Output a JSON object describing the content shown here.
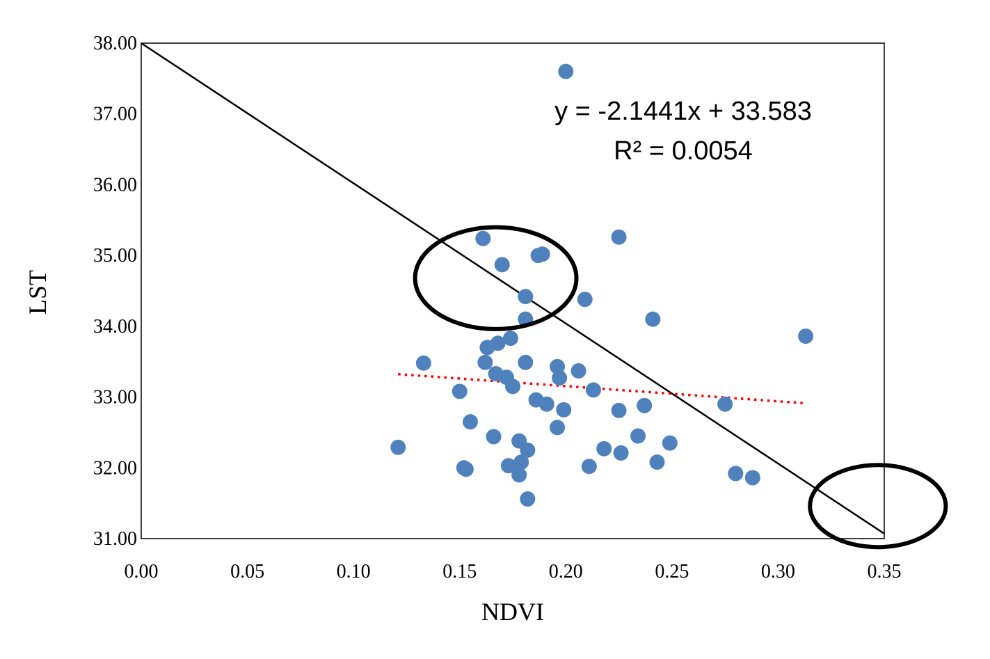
{
  "chart_data": {
    "type": "scatter",
    "xlabel": "NDVI",
    "ylabel": "LST",
    "xlim": [
      0.0,
      0.35
    ],
    "ylim": [
      31.0,
      38.0
    ],
    "x_ticks": [
      "0.00",
      "0.05",
      "0.10",
      "0.15",
      "0.20",
      "0.25",
      "0.30",
      "0.35"
    ],
    "y_ticks": [
      "31.00",
      "32.00",
      "33.00",
      "34.00",
      "35.00",
      "36.00",
      "37.00",
      "38.00"
    ],
    "grid": false,
    "legend": "none",
    "series": [
      {
        "color": "#4f81bd",
        "points": [
          [
            0.2,
            37.6
          ],
          [
            0.161,
            35.24
          ],
          [
            0.225,
            35.26
          ],
          [
            0.187,
            35.0
          ],
          [
            0.189,
            35.02
          ],
          [
            0.17,
            34.87
          ],
          [
            0.181,
            34.42
          ],
          [
            0.209,
            34.38
          ],
          [
            0.181,
            34.1
          ],
          [
            0.241,
            34.1
          ],
          [
            0.313,
            33.86
          ],
          [
            0.174,
            33.83
          ],
          [
            0.168,
            33.76
          ],
          [
            0.163,
            33.7
          ],
          [
            0.133,
            33.48
          ],
          [
            0.162,
            33.49
          ],
          [
            0.181,
            33.49
          ],
          [
            0.196,
            33.43
          ],
          [
            0.206,
            33.37
          ],
          [
            0.167,
            33.33
          ],
          [
            0.172,
            33.28
          ],
          [
            0.197,
            33.27
          ],
          [
            0.175,
            33.15
          ],
          [
            0.15,
            33.08
          ],
          [
            0.213,
            33.1
          ],
          [
            0.186,
            32.96
          ],
          [
            0.191,
            32.9
          ],
          [
            0.237,
            32.88
          ],
          [
            0.275,
            32.9
          ],
          [
            0.199,
            32.82
          ],
          [
            0.225,
            32.81
          ],
          [
            0.155,
            32.65
          ],
          [
            0.196,
            32.57
          ],
          [
            0.166,
            32.44
          ],
          [
            0.234,
            32.45
          ],
          [
            0.178,
            32.38
          ],
          [
            0.249,
            32.35
          ],
          [
            0.121,
            32.29
          ],
          [
            0.218,
            32.27
          ],
          [
            0.182,
            32.25
          ],
          [
            0.226,
            32.21
          ],
          [
            0.179,
            32.08
          ],
          [
            0.243,
            32.08
          ],
          [
            0.173,
            32.03
          ],
          [
            0.211,
            32.02
          ],
          [
            0.152,
            32.0
          ],
          [
            0.153,
            31.98
          ],
          [
            0.178,
            31.9
          ],
          [
            0.28,
            31.92
          ],
          [
            0.288,
            31.86
          ],
          [
            0.182,
            31.56
          ]
        ]
      }
    ],
    "trend_line": {
      "color": "#ff0000",
      "style": "dotted",
      "x_range": [
        0.121,
        0.313
      ],
      "slope": -2.1441,
      "intercept": 33.583
    },
    "reference_line": {
      "color": "#000000",
      "x1": 0.0,
      "y1": 38.0,
      "x2": 0.35,
      "y2": 31.07
    },
    "annotations": {
      "equation": "y = -2.1441x + 33.583",
      "r_squared": "R² = 0.0054"
    },
    "ellipses": [
      {
        "cx": 0.167,
        "cy": 34.68,
        "rx": 0.038,
        "ry": 0.72
      },
      {
        "cx": 0.347,
        "cy": 31.46,
        "rx": 0.032,
        "ry": 0.58
      }
    ]
  }
}
